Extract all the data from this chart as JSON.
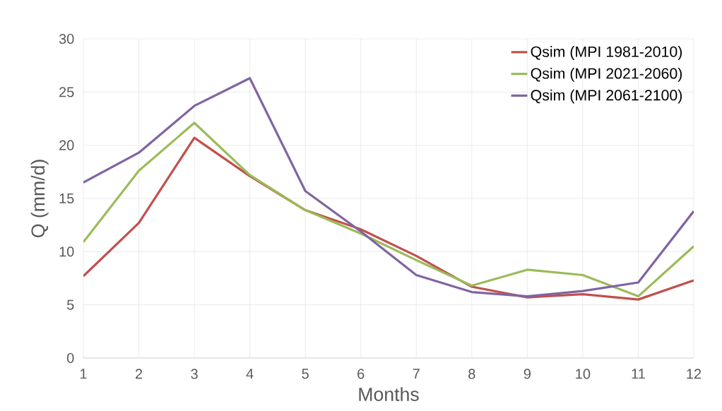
{
  "chart_data": {
    "type": "line",
    "xlabel": "Months",
    "ylabel": "Q (mm/d)",
    "x": [
      1,
      2,
      3,
      4,
      5,
      6,
      7,
      8,
      9,
      10,
      11,
      12
    ],
    "series": [
      {
        "name": "Qsim (MPI 1981-2010)",
        "color": "#c0504d",
        "values": [
          7.7,
          12.7,
          20.7,
          17.1,
          13.9,
          12.1,
          9.6,
          6.7,
          5.7,
          6.0,
          5.5,
          7.3
        ]
      },
      {
        "name": "Qsim (MPI 2021-2060)",
        "color": "#9bbb59",
        "values": [
          10.9,
          17.6,
          22.1,
          17.2,
          13.9,
          11.7,
          9.2,
          6.8,
          8.3,
          7.8,
          5.8,
          10.5
        ]
      },
      {
        "name": "Qsim (MPI 2061-2100)",
        "color": "#8064a2",
        "values": [
          16.5,
          19.3,
          23.7,
          26.3,
          15.7,
          11.9,
          7.8,
          6.2,
          5.8,
          6.3,
          7.1,
          13.8
        ]
      }
    ],
    "xlim": [
      1,
      12
    ],
    "xticks": [
      1,
      2,
      3,
      4,
      5,
      6,
      7,
      8,
      9,
      10,
      11,
      12
    ],
    "ylim": [
      0,
      30
    ],
    "yticks": [
      0,
      5,
      10,
      15,
      20,
      25,
      30
    ],
    "grid": true,
    "legend": "top right",
    "marker": "none",
    "line_style": "solid"
  }
}
